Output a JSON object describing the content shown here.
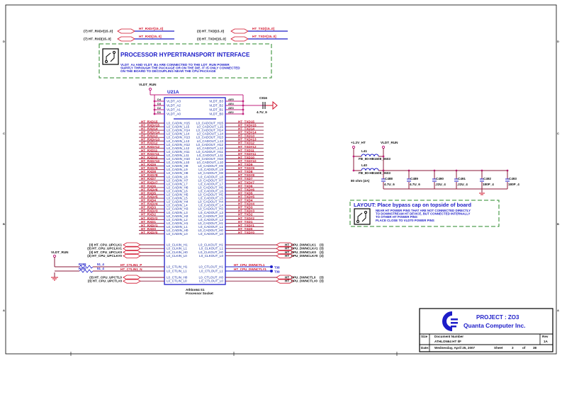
{
  "top_ports": [
    {
      "dir": "(7)",
      "name": "HT_RXD#[15..0]",
      "net": "HT_RXD#[15..0]"
    },
    {
      "dir": "(7)",
      "name": "HT_RXD[15..0]",
      "net": "HT_RXD[15..0]"
    },
    {
      "dir": "(3)",
      "name": "HT_TXD[15..0]",
      "net": "HT_TXD[15..0]"
    },
    {
      "dir": "(3)",
      "name": "HT_TXD#[15..0]",
      "net": "HT_TXD#[15..0]"
    }
  ],
  "interface_note": {
    "title": "PROCESSOR HYPERTRANSPORT INTERFACE",
    "lines": [
      "VLDT_Ax AND VLDT_Bx ARE CONNECTED TO THE LDT_RUN POWER",
      "SUPPLY THROUGH THE PACKAGE OR ON THE DIE. IT IS ONLY CONNECTED",
      "ON THE BOARD TO DECOUPLING NEAR THE CPU PACKAGE"
    ]
  },
  "chip": {
    "ref": "U21A",
    "part": [
      "Athlon64 S1",
      "Processor Socket"
    ],
    "supply": "VLDT_RUN",
    "power_left": [
      {
        "ball": "D4",
        "pin": "VLDT_A3"
      },
      {
        "ball": "D3",
        "pin": "VLDT_A2"
      },
      {
        "ball": "D2",
        "pin": "VLDT_A1"
      },
      {
        "ball": "D1",
        "pin": "VLDT_A0"
      }
    ],
    "power_right": [
      {
        "ball": "AE5",
        "pin": "VLDT_B3"
      },
      {
        "ball": "AE4",
        "pin": "VLDT_B2"
      },
      {
        "ball": "AE3",
        "pin": "VLDT_B1"
      },
      {
        "ball": "AE2",
        "pin": "VLDT_B0"
      }
    ],
    "cap": {
      "ref": "C816",
      "value": "4.7U_6"
    },
    "cad_rows": [
      {
        "net_in": "HT_RXD15",
        "pin_in": "L0_CADIN_H15",
        "pin_out": "L0_CADOUT_H15",
        "net_out": "HT_TXD15"
      },
      {
        "net_in": "HT_RXD#15",
        "pin_in": "L0_CADIN_L15",
        "pin_out": "L0_CADOUT_L15",
        "net_out": "HT_TXD#15"
      },
      {
        "net_in": "HT_RXD14",
        "pin_in": "L0_CADIN_H14",
        "pin_out": "L0_CADOUT_H14",
        "net_out": "HT_TXD14"
      },
      {
        "net_in": "HT_RXD#14",
        "pin_in": "L0_CADIN_L14",
        "pin_out": "L0_CADOUT_L14",
        "net_out": "HT_TXD#14"
      },
      {
        "net_in": "HT_RXD13",
        "pin_in": "L0_CADIN_H13",
        "pin_out": "L0_CADOUT_H13",
        "net_out": "HT_TXD13"
      },
      {
        "net_in": "HT_RXD#13",
        "pin_in": "L0_CADIN_L13",
        "pin_out": "L0_CADOUT_L13",
        "net_out": "HT_TXD#13"
      },
      {
        "net_in": "HT_RXD12",
        "pin_in": "L0_CADIN_H12",
        "pin_out": "L0_CADOUT_H12",
        "net_out": "HT_TXD12"
      },
      {
        "net_in": "HT_RXD#12",
        "pin_in": "L0_CADIN_L12",
        "pin_out": "L0_CADOUT_L12",
        "net_out": "HT_TXD#12"
      },
      {
        "net_in": "HT_RXD11",
        "pin_in": "L0_CADIN_H11",
        "pin_out": "L0_CADOUT_H11",
        "net_out": "HT_TXD11"
      },
      {
        "net_in": "HT_RXD#11",
        "pin_in": "L0_CADIN_L11",
        "pin_out": "L0_CADOUT_L11",
        "net_out": "HT_TXD#11"
      },
      {
        "net_in": "HT_RXD10",
        "pin_in": "L0_CADIN_H10",
        "pin_out": "L0_CADOUT_H10",
        "net_out": "HT_TXD10"
      },
      {
        "net_in": "HT_RXD#10",
        "pin_in": "L0_CADIN_L10",
        "pin_out": "L0_CADOUT_L10",
        "net_out": "HT_TXD#10"
      },
      {
        "net_in": "HT_RXD9",
        "pin_in": "L0_CADIN_H9",
        "pin_out": "L0_CADOUT_H9",
        "net_out": "HT_TXD9"
      },
      {
        "net_in": "HT_RXD#9",
        "pin_in": "L0_CADIN_L9",
        "pin_out": "L0_CADOUT_L9",
        "net_out": "HT_TXD#9"
      },
      {
        "net_in": "HT_RXD8",
        "pin_in": "L0_CADIN_H8",
        "pin_out": "L0_CADOUT_H8",
        "net_out": "HT_TXD8"
      },
      {
        "net_in": "HT_RXD#8",
        "pin_in": "L0_CADIN_L8",
        "pin_out": "L0_CADOUT_L8",
        "net_out": "HT_TXD#8"
      },
      {
        "net_in": "HT_RXD7",
        "pin_in": "L0_CADIN_H7",
        "pin_out": "L0_CADOUT_H7",
        "net_out": "HT_TXD7"
      },
      {
        "net_in": "HT_RXD#7",
        "pin_in": "L0_CADIN_L7",
        "pin_out": "L0_CADOUT_L7",
        "net_out": "HT_TXD#7"
      },
      {
        "net_in": "HT_RXD6",
        "pin_in": "L0_CADIN_H6",
        "pin_out": "L0_CADOUT_H6",
        "net_out": "HT_TXD6"
      },
      {
        "net_in": "HT_RXD#6",
        "pin_in": "L0_CADIN_L6",
        "pin_out": "L0_CADOUT_L6",
        "net_out": "HT_TXD#6"
      },
      {
        "net_in": "HT_RXD5",
        "pin_in": "L0_CADIN_H5",
        "pin_out": "L0_CADOUT_H5",
        "net_out": "HT_TXD5"
      },
      {
        "net_in": "HT_RXD#5",
        "pin_in": "L0_CADIN_L5",
        "pin_out": "L0_CADOUT_L5",
        "net_out": "HT_TXD#5"
      },
      {
        "net_in": "HT_RXD4",
        "pin_in": "L0_CADIN_H4",
        "pin_out": "L0_CADOUT_H4",
        "net_out": "HT_TXD4"
      },
      {
        "net_in": "HT_RXD#4",
        "pin_in": "L0_CADIN_L4",
        "pin_out": "L0_CADOUT_L4",
        "net_out": "HT_TXD#4"
      },
      {
        "net_in": "HT_RXD3",
        "pin_in": "L0_CADIN_H3",
        "pin_out": "L0_CADOUT_H3",
        "net_out": "HT_TXD3"
      },
      {
        "net_in": "HT_RXD#3",
        "pin_in": "L0_CADIN_L3",
        "pin_out": "L0_CADOUT_L3",
        "net_out": "HT_TXD#3"
      },
      {
        "net_in": "HT_RXD2",
        "pin_in": "L0_CADIN_H2",
        "pin_out": "L0_CADOUT_H2",
        "net_out": "HT_TXD2"
      },
      {
        "net_in": "HT_RXD#2",
        "pin_in": "L0_CADIN_L2",
        "pin_out": "L0_CADOUT_L2",
        "net_out": "HT_TXD#2"
      },
      {
        "net_in": "HT_RXD1",
        "pin_in": "L0_CADIN_H1",
        "pin_out": "L0_CADOUT_H1",
        "net_out": "HT_TXD1"
      },
      {
        "net_in": "HT_RXD#1",
        "pin_in": "L0_CADIN_L1",
        "pin_out": "L0_CADOUT_L1",
        "net_out": "HT_TXD#1"
      },
      {
        "net_in": "HT_RXD0",
        "pin_in": "L0_CADIN_H0",
        "pin_out": "L0_CADOUT_H0",
        "net_out": "HT_TXD0"
      },
      {
        "net_in": "HT_RXD#0",
        "pin_in": "L0_CADIN_L0",
        "pin_out": "L0_CADOUT_L0",
        "net_out": "HT_TXD#0"
      }
    ],
    "clk_rows": [
      {
        "port_in": "(3) HT_CPU_UPCLK1",
        "pin_in": "L0_CLKIN_H1",
        "pin_out": "L0_CLKOUT_H1",
        "port_out": "HT_CPU_DWNCLK1",
        "ref_out": "(3)"
      },
      {
        "port_in": "(3) HT_CPU_UPCLK#1",
        "pin_in": "L0_CLKIN_L1",
        "pin_out": "L0_CLKOUT_L1",
        "port_out": "HT_CPU_DWNCLK#1",
        "ref_out": "(3)"
      },
      {
        "port_in": "(3) HT_CPU_UPCLK0",
        "pin_in": "L0_CLKIN_H0",
        "pin_out": "L0_CLKOUT_H0",
        "port_out": "HT_CPU_DWNCLK0",
        "ref_out": "(3)"
      },
      {
        "port_in": "(3) HT_CPU_UPCLK#0",
        "pin_in": "L0_CLKIN_L0",
        "pin_out": "L0_CLKOUT_L0",
        "port_out": "HT_CPU_DWNCLK#0",
        "ref_out": "(3)"
      }
    ],
    "ctl1_rows": [
      {
        "net_in": "HT_CTLIN1_P",
        "pin_in": "L0_CTLIN_H1",
        "res": "R399",
        "res_val": "51_4",
        "pin_out": "L0_CTLOUT_H1",
        "net_out": "HT_CPU_DWNCTL1",
        "tp": "T38"
      },
      {
        "net_in": "HT_CTLIN1_N",
        "pin_in": "L0_CTLIN_L1",
        "res": "R400",
        "res_val": "51_4",
        "pin_out": "L0_CTLOUT_L1",
        "net_out": "HT_CPU_DWNCTL#1",
        "tp": "T39"
      }
    ],
    "ctl1_supply": "VLDT_RUN",
    "ctl0_rows": [
      {
        "port_in": "(3) HT_CPU_UPCTL0",
        "pin_in": "L0_CTLIN_H0",
        "pin_out": "L0_CTLOUT_H0",
        "port_out": "HT_CPU_DWNCTL0",
        "ref_out": "(3)"
      },
      {
        "port_in": "(3) HT_CPU_UPCTL#0",
        "pin_in": "L0_CTLIN_L0",
        "pin_out": "L0_CTLOUT_L0",
        "port_out": "HT_CPU_DWNCTL#0",
        "ref_out": "(3)"
      }
    ]
  },
  "decoupling": {
    "source": "+1.2V_HT",
    "dest": "VLDT_RUN",
    "inductors": [
      {
        "ref": "L41",
        "value": "FB_80-HB1608_0603"
      },
      {
        "ref": "L40",
        "value": "FB_80-HB1608_0603"
      }
    ],
    "rating": "80 ohm (4A)",
    "caps": [
      {
        "ref": "C488",
        "value": "4.7U_6"
      },
      {
        "ref": "C489",
        "value": "4.7U_6"
      },
      {
        "ref": "C490",
        "value": ".22U_4"
      },
      {
        "ref": "C491",
        "value": ".22U_4"
      },
      {
        "ref": "C492",
        "value": "180P_4"
      },
      {
        "ref": "C493",
        "value": "180P_4"
      }
    ]
  },
  "layout_note": {
    "title": "LAYOUT: Place bypass cap on topside of board",
    "lines": [
      "NEAR HT POWER PINS THAT ARE NOT CONNECTED DIRECTLY",
      "TO DOWNSTREAM HT DEVICE, BUT CONNECTED INTERNALLY",
      "TO OTHER HT POWER PINS",
      "PLACE CLOSE TO VLDT0 POWER PINS"
    ]
  },
  "title_block": {
    "project": "PROJECT : ZO3",
    "company": "Quanta Computer Inc.",
    "size_label": "Size",
    "doc_label": "Document Number",
    "doc": "ATHLON64 HT I/F",
    "rev_label": "Rev",
    "rev": "1A",
    "date_label": "Date:",
    "date": "Wednesday, April 25, 2007",
    "sheet_label": "Sheet",
    "sheet": "3",
    "of_label": "of",
    "sheets": "38"
  },
  "border_marks": {
    "rows": [
      "D",
      "C",
      "B",
      "A"
    ]
  },
  "colors": {
    "net": "#d0102a",
    "wire": "#8b1a3a",
    "pin": "#1a2fa0",
    "power": "#c0207c",
    "note_border": "#2a8a2a"
  }
}
